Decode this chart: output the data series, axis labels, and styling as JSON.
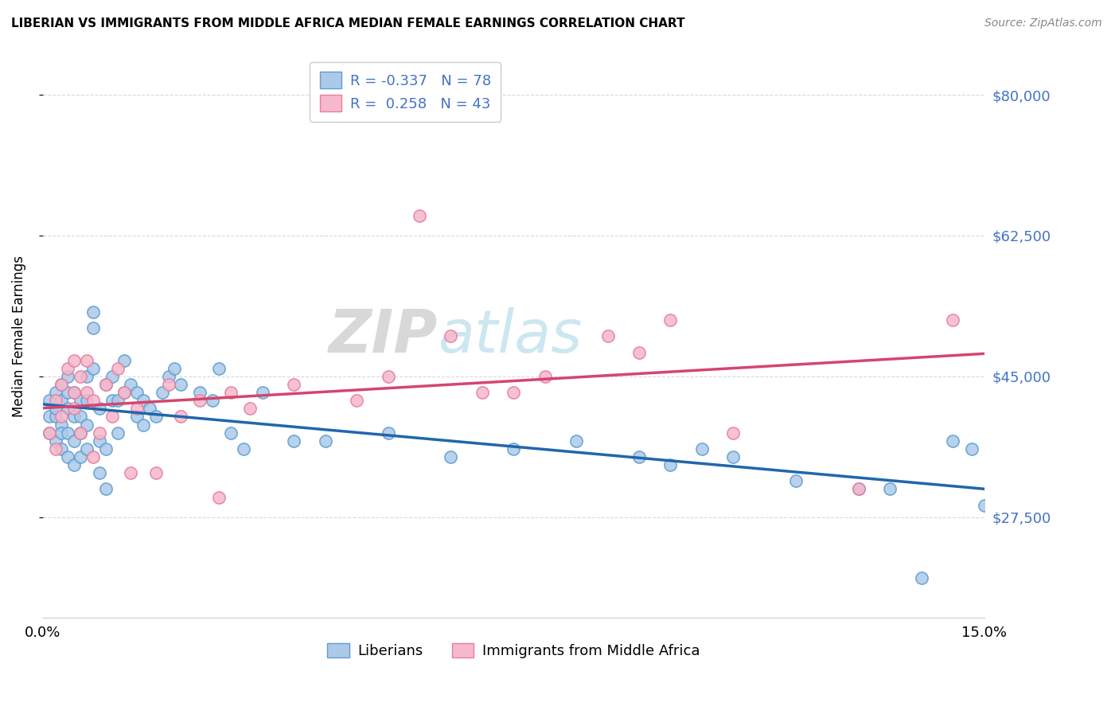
{
  "title": "LIBERIAN VS IMMIGRANTS FROM MIDDLE AFRICA MEDIAN FEMALE EARNINGS CORRELATION CHART",
  "source": "Source: ZipAtlas.com",
  "ylabel": "Median Female Earnings",
  "xlim": [
    0.0,
    0.15
  ],
  "ylim_low": 15000,
  "ylim_high": 85000,
  "yticks": [
    27500,
    45000,
    62500,
    80000
  ],
  "ytick_labels": [
    "$27,500",
    "$45,000",
    "$62,500",
    "$80,000"
  ],
  "blue_fill": "#adc9e8",
  "blue_edge": "#5b9fd4",
  "pink_fill": "#f5b8cc",
  "pink_edge": "#e87da0",
  "blue_line_color": "#2166ac",
  "pink_line_color": "#d6456e",
  "R_blue": -0.337,
  "N_blue": 78,
  "R_pink": 0.258,
  "N_pink": 43,
  "legend_label_blue": "Liberians",
  "legend_label_pink": "Immigrants from Middle Africa",
  "label_color": "#4472c4",
  "blue_x": [
    0.001,
    0.001,
    0.001,
    0.002,
    0.002,
    0.002,
    0.002,
    0.003,
    0.003,
    0.003,
    0.003,
    0.003,
    0.004,
    0.004,
    0.004,
    0.004,
    0.004,
    0.005,
    0.005,
    0.005,
    0.005,
    0.006,
    0.006,
    0.006,
    0.006,
    0.007,
    0.007,
    0.007,
    0.007,
    0.008,
    0.008,
    0.008,
    0.009,
    0.009,
    0.009,
    0.01,
    0.01,
    0.01,
    0.011,
    0.011,
    0.012,
    0.012,
    0.013,
    0.013,
    0.014,
    0.015,
    0.015,
    0.016,
    0.016,
    0.017,
    0.018,
    0.019,
    0.02,
    0.021,
    0.022,
    0.025,
    0.027,
    0.028,
    0.03,
    0.032,
    0.035,
    0.04,
    0.045,
    0.055,
    0.065,
    0.075,
    0.085,
    0.095,
    0.1,
    0.105,
    0.11,
    0.12,
    0.13,
    0.135,
    0.14,
    0.145,
    0.148,
    0.15
  ],
  "blue_y": [
    40000,
    42000,
    38000,
    37000,
    40000,
    43000,
    41000,
    36000,
    39000,
    42000,
    44000,
    38000,
    35000,
    38000,
    41000,
    43000,
    45000,
    34000,
    37000,
    40000,
    43000,
    35000,
    38000,
    40000,
    42000,
    36000,
    39000,
    42000,
    45000,
    46000,
    51000,
    53000,
    33000,
    37000,
    41000,
    31000,
    36000,
    44000,
    42000,
    45000,
    38000,
    42000,
    47000,
    43000,
    44000,
    40000,
    43000,
    42000,
    39000,
    41000,
    40000,
    43000,
    45000,
    46000,
    44000,
    43000,
    42000,
    46000,
    38000,
    36000,
    43000,
    37000,
    37000,
    38000,
    35000,
    36000,
    37000,
    35000,
    34000,
    36000,
    35000,
    32000,
    31000,
    31000,
    20000,
    37000,
    36000,
    29000
  ],
  "pink_x": [
    0.001,
    0.002,
    0.002,
    0.003,
    0.003,
    0.004,
    0.005,
    0.005,
    0.005,
    0.006,
    0.006,
    0.007,
    0.007,
    0.008,
    0.008,
    0.009,
    0.01,
    0.011,
    0.012,
    0.013,
    0.014,
    0.015,
    0.018,
    0.02,
    0.022,
    0.025,
    0.028,
    0.03,
    0.033,
    0.04,
    0.05,
    0.055,
    0.06,
    0.065,
    0.07,
    0.075,
    0.08,
    0.09,
    0.095,
    0.1,
    0.11,
    0.13,
    0.145
  ],
  "pink_y": [
    38000,
    36000,
    42000,
    40000,
    44000,
    46000,
    41000,
    43000,
    47000,
    38000,
    45000,
    43000,
    47000,
    35000,
    42000,
    38000,
    44000,
    40000,
    46000,
    43000,
    33000,
    41000,
    33000,
    44000,
    40000,
    42000,
    30000,
    43000,
    41000,
    44000,
    42000,
    45000,
    65000,
    50000,
    43000,
    43000,
    45000,
    50000,
    48000,
    52000,
    38000,
    31000,
    52000
  ]
}
